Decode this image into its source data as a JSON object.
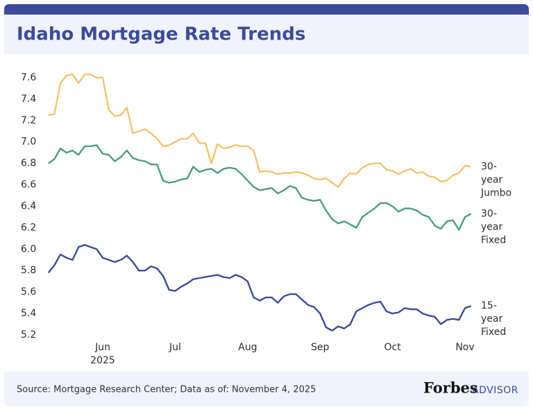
{
  "chart_data": {
    "type": "line",
    "title": "Idaho Mortgage Rate Trends",
    "source": "Source: Mortgage Research Center; Data as of: November 4, 2025",
    "brand": "Forbes",
    "brand_sub": "ADVISOR",
    "x_year_label": "2025",
    "categories": [
      null,
      null,
      null,
      null,
      null,
      null,
      null,
      null,
      null,
      "Jun",
      null,
      null,
      null,
      null,
      null,
      null,
      null,
      null,
      null,
      null,
      null,
      "Jul",
      null,
      null,
      null,
      null,
      null,
      null,
      null,
      null,
      null,
      null,
      null,
      "Aug",
      null,
      null,
      null,
      null,
      null,
      null,
      null,
      null,
      null,
      null,
      null,
      "Sep",
      null,
      null,
      null,
      null,
      null,
      null,
      null,
      null,
      null,
      null,
      null,
      "Oct",
      null,
      null,
      null,
      null,
      null,
      null,
      null,
      null,
      null,
      null,
      null,
      "Nov",
      null
    ],
    "ylim": [
      5.15,
      7.7
    ],
    "yticks": [
      5.2,
      5.4,
      5.6,
      5.8,
      {
        "value": 6,
        "label": "6.0"
      },
      6.2,
      6.4,
      6.6,
      6.8,
      {
        "value": 7,
        "label": "7.0"
      },
      7.2,
      7.4,
      7.6
    ],
    "grid": false,
    "series": [
      {
        "name": "30-year Jumbo",
        "color": "#f5c26b",
        "values": [
          7.25,
          7.26,
          7.55,
          7.62,
          7.63,
          7.55,
          7.63,
          7.63,
          7.6,
          7.6,
          7.3,
          7.24,
          7.25,
          7.32,
          7.08,
          7.1,
          7.12,
          7.08,
          7.03,
          6.96,
          6.97,
          7.0,
          7.03,
          7.03,
          7.08,
          6.99,
          6.99,
          6.8,
          6.98,
          6.94,
          6.95,
          6.97,
          6.96,
          6.96,
          6.92,
          6.72,
          6.73,
          6.72,
          6.7,
          6.71,
          6.71,
          6.72,
          6.71,
          6.69,
          6.66,
          6.65,
          6.66,
          6.62,
          6.58,
          6.66,
          6.71,
          6.7,
          6.76,
          6.79,
          6.8,
          6.8,
          6.74,
          6.73,
          6.7,
          6.73,
          6.75,
          6.71,
          6.72,
          6.68,
          6.67,
          6.63,
          6.64,
          6.69,
          6.71,
          6.78,
          6.77
        ]
      },
      {
        "name": "30-year Fixed",
        "color": "#4a9e82",
        "values": [
          6.8,
          6.84,
          6.94,
          6.9,
          6.92,
          6.88,
          6.96,
          6.96,
          6.97,
          6.89,
          6.88,
          6.82,
          6.86,
          6.92,
          6.85,
          6.83,
          6.82,
          6.79,
          6.79,
          6.64,
          6.62,
          6.63,
          6.65,
          6.66,
          6.77,
          6.72,
          6.74,
          6.75,
          6.71,
          6.75,
          6.76,
          6.75,
          6.7,
          6.64,
          6.58,
          6.55,
          6.56,
          6.57,
          6.52,
          6.55,
          6.59,
          6.57,
          6.48,
          6.46,
          6.45,
          6.46,
          6.36,
          6.28,
          6.24,
          6.26,
          6.23,
          6.2,
          6.3,
          6.34,
          6.38,
          6.43,
          6.43,
          6.4,
          6.35,
          6.38,
          6.38,
          6.36,
          6.32,
          6.3,
          6.22,
          6.19,
          6.26,
          6.27,
          6.18,
          6.3,
          6.33
        ]
      },
      {
        "name": "15-year Fixed",
        "color": "#3b4a9e",
        "values": [
          5.78,
          5.85,
          5.95,
          5.92,
          5.9,
          6.02,
          6.04,
          6.02,
          6.0,
          5.92,
          5.9,
          5.88,
          5.9,
          5.94,
          5.88,
          5.8,
          5.8,
          5.84,
          5.82,
          5.75,
          5.62,
          5.61,
          5.65,
          5.68,
          5.72,
          5.73,
          5.74,
          5.75,
          5.76,
          5.74,
          5.73,
          5.76,
          5.74,
          5.7,
          5.55,
          5.52,
          5.55,
          5.55,
          5.5,
          5.56,
          5.58,
          5.58,
          5.53,
          5.48,
          5.46,
          5.4,
          5.27,
          5.24,
          5.28,
          5.26,
          5.3,
          5.42,
          5.45,
          5.48,
          5.5,
          5.51,
          5.42,
          5.4,
          5.41,
          5.45,
          5.44,
          5.44,
          5.4,
          5.38,
          5.37,
          5.3,
          5.34,
          5.35,
          5.34,
          5.45,
          5.47
        ]
      }
    ]
  }
}
